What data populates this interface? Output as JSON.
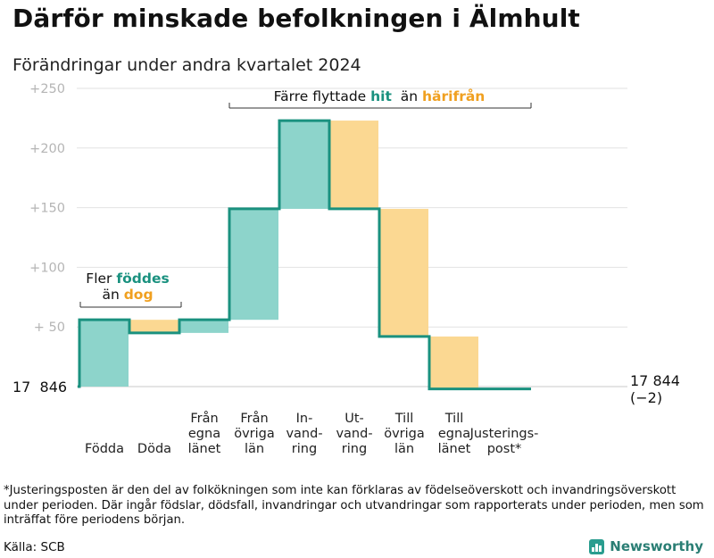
{
  "title": "Därför minskade befolkningen i Älmhult",
  "subtitle": "Förändringar under andra kvartalet 2024",
  "footnote": "*Justeringsposten är den del av folkökningen som inte kan förklaras av födelseöverskott och invandringsöverskott under perioden. Där ingår födslar, dödsfall, invandringar och utvandringar som rapporterats under perioden, men som inträffat före periodens början.",
  "source": "Källa: SCB",
  "brand": "Newsworthy",
  "colors": {
    "increase": "#8dd4cb",
    "decrease": "#fbd892",
    "line": "#1a917f",
    "text_teal": "#1a917f",
    "text_orange": "#f0a020",
    "grid": "#e2e2e2"
  },
  "chart_data": {
    "type": "waterfall",
    "start_label": "17  846",
    "end_label": "17 844",
    "end_change": "(−2)",
    "ylim": [
      0,
      250
    ],
    "y_ticks": [
      {
        "value": 250,
        "label": "+250"
      },
      {
        "value": 200,
        "label": "+200"
      },
      {
        "value": 150,
        "label": "+150"
      },
      {
        "value": 100,
        "label": "+100"
      },
      {
        "value": 50,
        "label": "+  50"
      }
    ],
    "steps": [
      {
        "label": [
          "Födda"
        ],
        "change": 56,
        "from": 0,
        "to": 56,
        "kind": "increase"
      },
      {
        "label": [
          "Döda"
        ],
        "change": -11,
        "from": 56,
        "to": 45,
        "kind": "decrease"
      },
      {
        "label": [
          "Från",
          "egna",
          "länet"
        ],
        "change": 11,
        "from": 45,
        "to": 56,
        "kind": "increase"
      },
      {
        "label": [
          "Från",
          "övriga",
          "län"
        ],
        "change": 93,
        "from": 56,
        "to": 149,
        "kind": "increase"
      },
      {
        "label": [
          "In-",
          "vand-",
          "ring"
        ],
        "change": 74,
        "from": 149,
        "to": 223,
        "kind": "increase"
      },
      {
        "label": [
          "Ut-",
          "vand-",
          "ring"
        ],
        "change": -74,
        "from": 223,
        "to": 149,
        "kind": "decrease"
      },
      {
        "label": [
          "Till",
          "övriga",
          "län"
        ],
        "change": -107,
        "from": 149,
        "to": 42,
        "kind": "decrease"
      },
      {
        "label": [
          "Till",
          "egna",
          "länet"
        ],
        "change": -44,
        "from": 42,
        "to": -2,
        "kind": "decrease"
      },
      {
        "label": [
          "Justerings-",
          "post*"
        ],
        "change": 0,
        "from": -2,
        "to": -2,
        "kind": "neutral"
      }
    ],
    "annotations": [
      {
        "id": "births",
        "line1_prefix": "Fler ",
        "line1_highlight": "föddes",
        "line2_prefix": "än ",
        "line2_highlight": "dog"
      },
      {
        "id": "migration",
        "prefix": "Färre flyttade ",
        "highlight1": "hit",
        "middle": "  än ",
        "highlight2": "härifrån"
      }
    ]
  }
}
